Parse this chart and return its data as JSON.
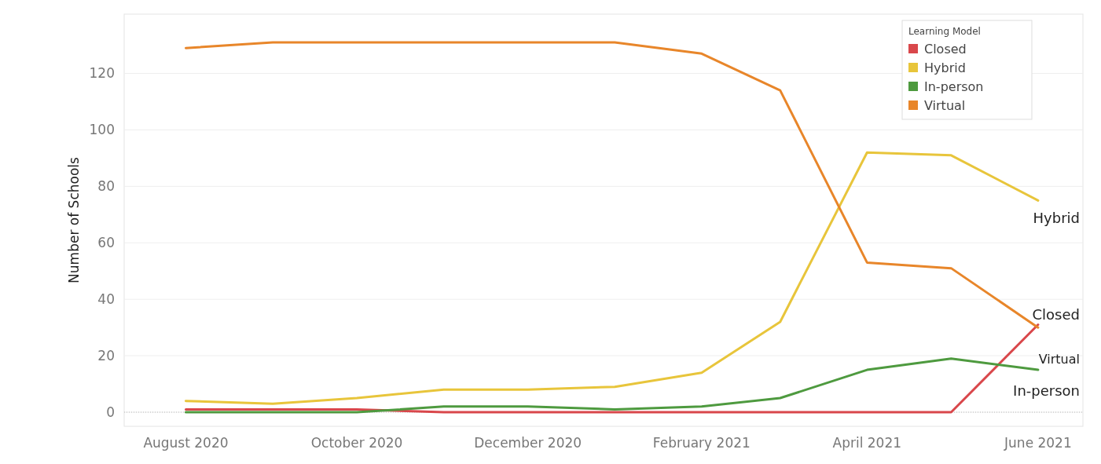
{
  "chart_data": {
    "type": "line",
    "ylabel": "Number of Schools",
    "legend_title": "Learning Model",
    "legend": "top right",
    "grid": "y",
    "line_style": "solid",
    "marker": "none",
    "x": [
      "2020-08",
      "2020-09",
      "2020-10",
      "2020-11",
      "2020-12",
      "2021-01",
      "2021-02",
      "2021-03",
      "2021-04",
      "2021-05",
      "2021-06"
    ],
    "xlim": [
      "2020-07-10",
      "2021-06-17"
    ],
    "xticks": [
      {
        "value": "2020-08",
        "label": "August 2020"
      },
      {
        "value": "2020-10",
        "label": "October 2020"
      },
      {
        "value": "2020-12",
        "label": "December 2020"
      },
      {
        "value": "2021-02",
        "label": "February 2021"
      },
      {
        "value": "2021-04",
        "label": "April 2021"
      },
      {
        "value": "2021-06",
        "label": "June 2021"
      }
    ],
    "ylim": [
      -5,
      141
    ],
    "yticks": [
      0,
      20,
      40,
      60,
      80,
      100,
      120
    ],
    "series": [
      {
        "name": "Closed",
        "color": "#d9474b",
        "values": [
          1,
          1,
          1,
          0,
          0,
          0,
          0,
          0,
          0,
          0,
          31
        ]
      },
      {
        "name": "Hybrid",
        "color": "#e8c53b",
        "values": [
          4,
          3,
          5,
          8,
          8,
          9,
          14,
          32,
          92,
          91,
          75
        ]
      },
      {
        "name": "In-person",
        "color": "#4e9a3f",
        "values": [
          0,
          0,
          0,
          2,
          2,
          1,
          2,
          5,
          15,
          19,
          15
        ]
      },
      {
        "name": "Virtual",
        "color": "#e8862a",
        "values": [
          129,
          131,
          131,
          131,
          131,
          131,
          127,
          114,
          53,
          51,
          30
        ]
      }
    ],
    "ref_lines": [
      {
        "axis": "y",
        "value": 0,
        "color": "#bbbbbb",
        "line_style": "dotted"
      }
    ],
    "annotations": [
      "Hybrid",
      "Closed",
      "Virtual",
      "In-person"
    ]
  }
}
